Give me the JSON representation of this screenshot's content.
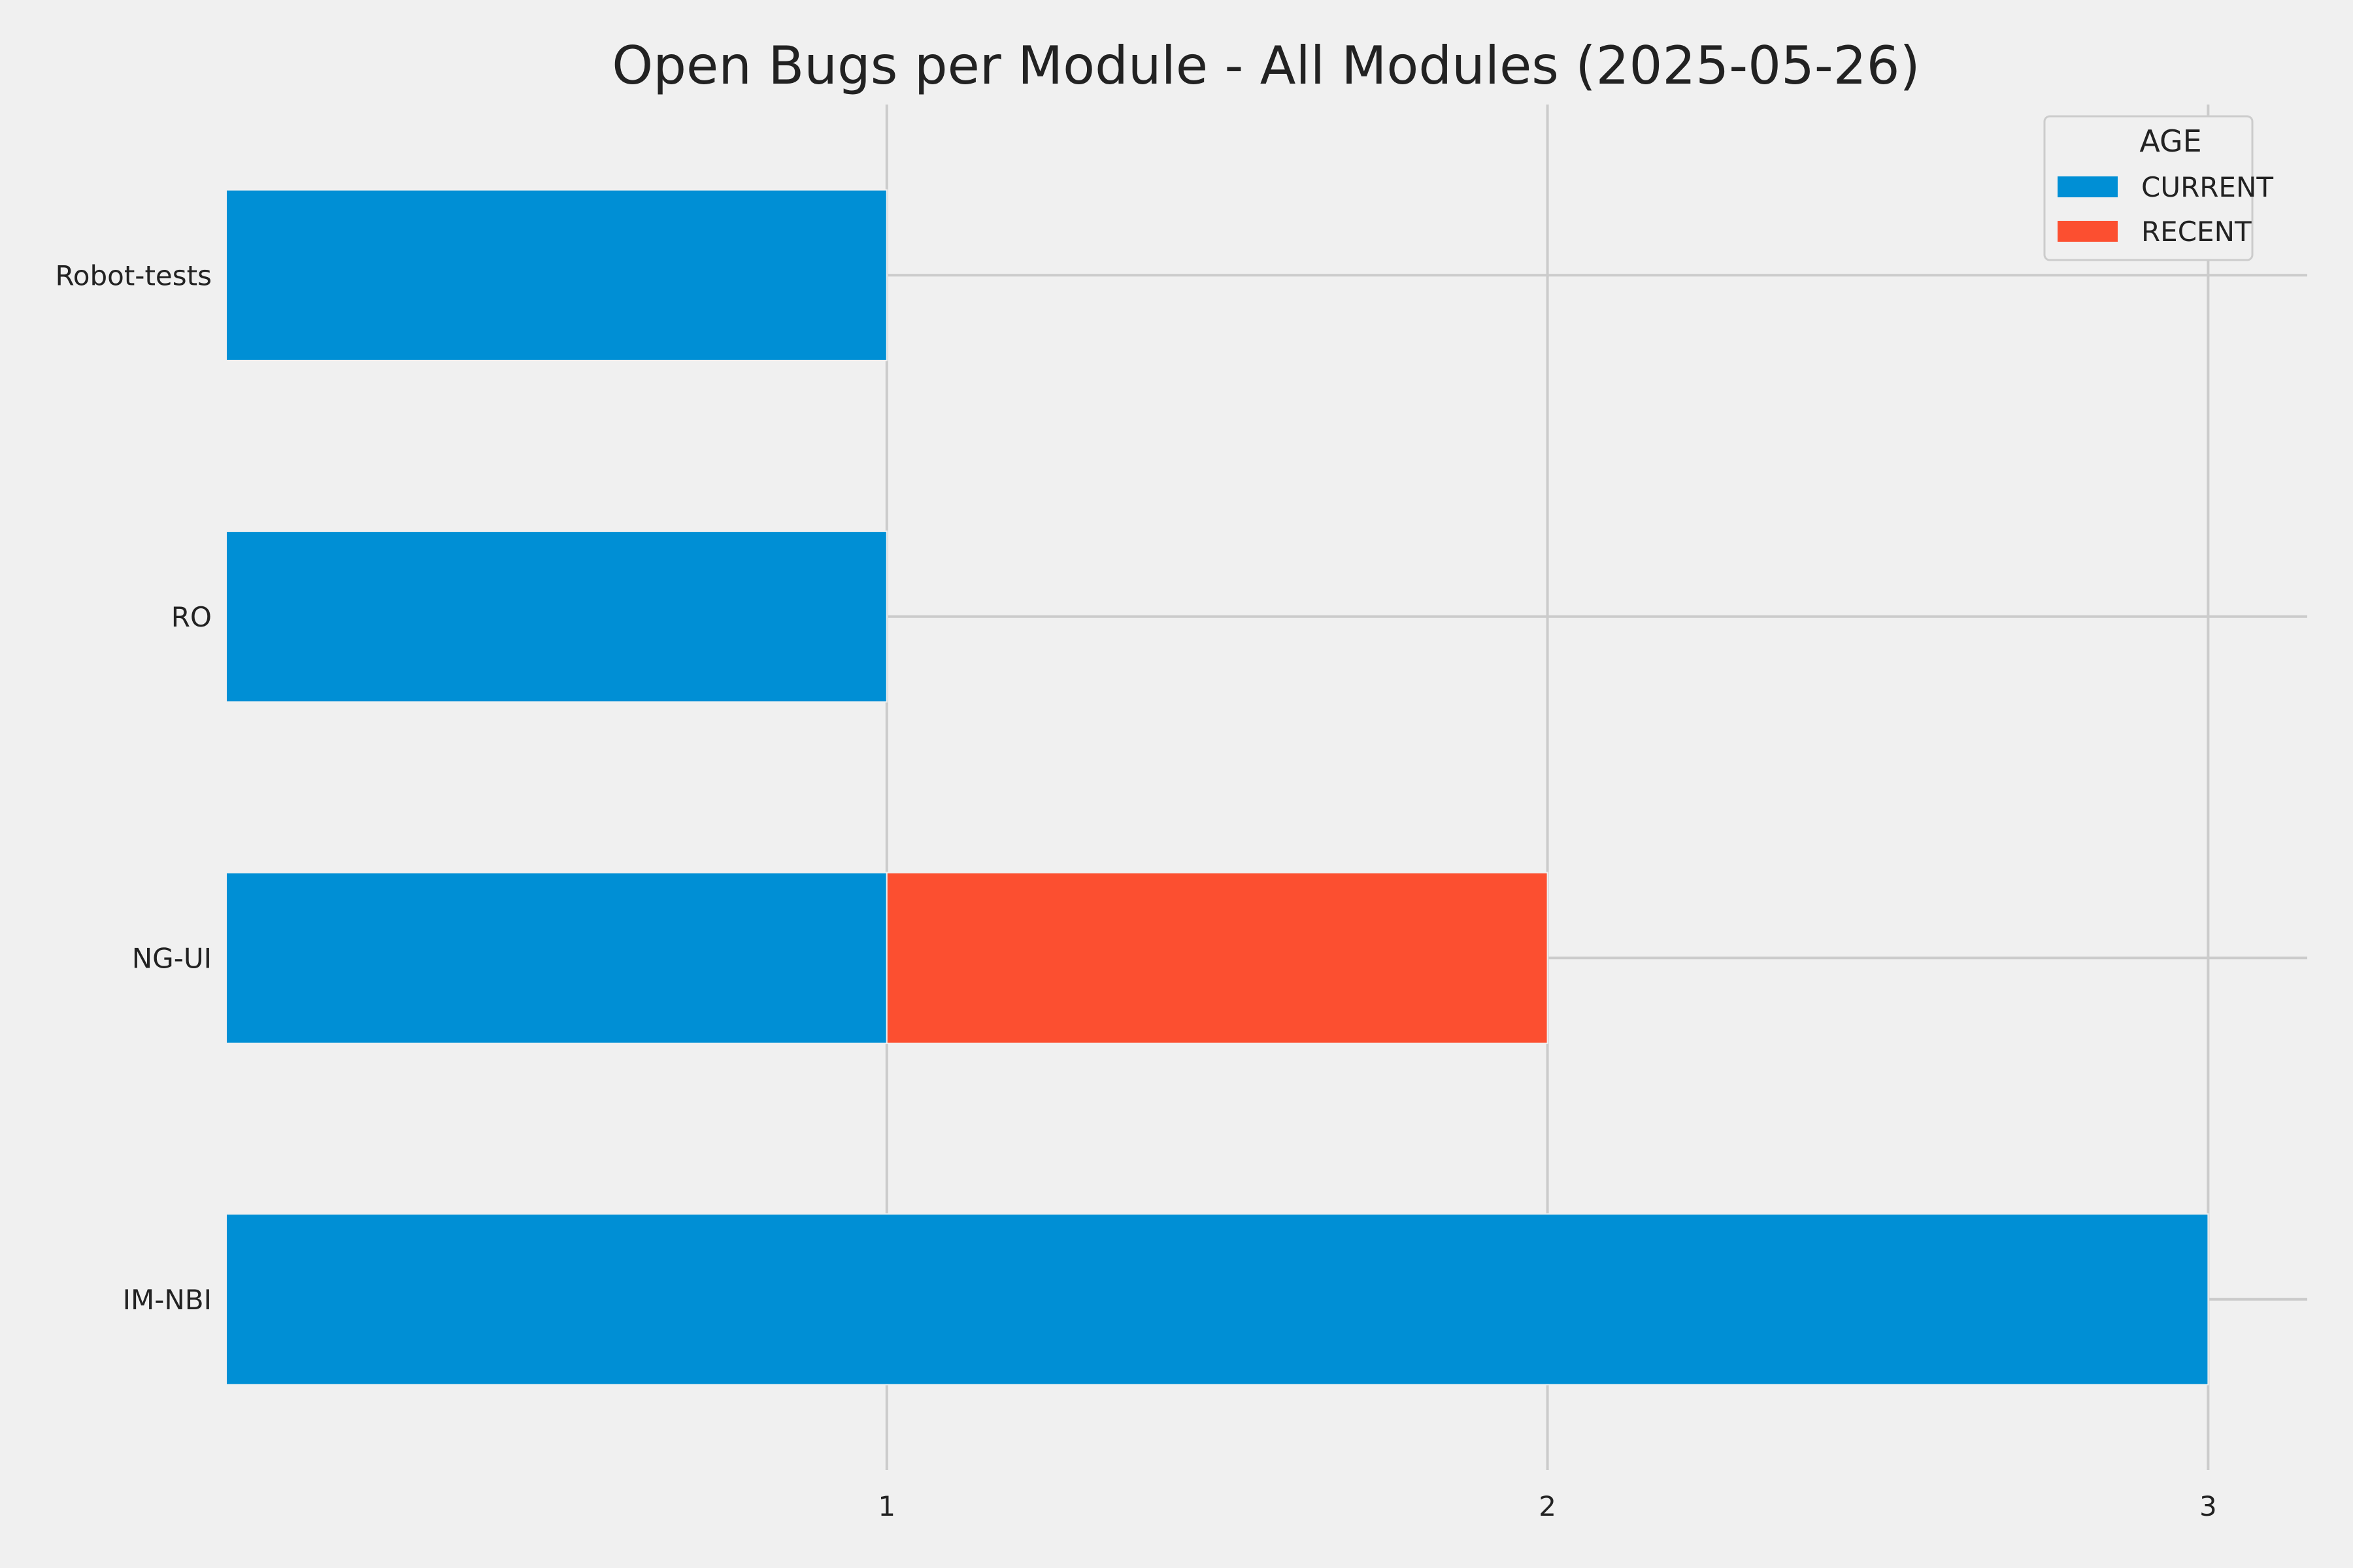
{
  "chart_data": {
    "type": "bar",
    "orientation": "horizontal",
    "stacked": true,
    "title": "Open Bugs per Module - All Modules (2025-05-26)",
    "xlabel": "",
    "ylabel": "",
    "categories": [
      "IM-NBI",
      "NG-UI",
      "RO",
      "Robot-tests"
    ],
    "series": [
      {
        "name": "CURRENT",
        "values": [
          3,
          1,
          1,
          1
        ],
        "color": "#008fd5"
      },
      {
        "name": "RECENT",
        "values": [
          0,
          1,
          0,
          0
        ],
        "color": "#fc4f30"
      }
    ],
    "xlim": [
      0,
      3.15
    ],
    "xticks": [
      1,
      2,
      3
    ],
    "grid": true,
    "legend": {
      "title": "AGE",
      "position": "top-right"
    }
  }
}
